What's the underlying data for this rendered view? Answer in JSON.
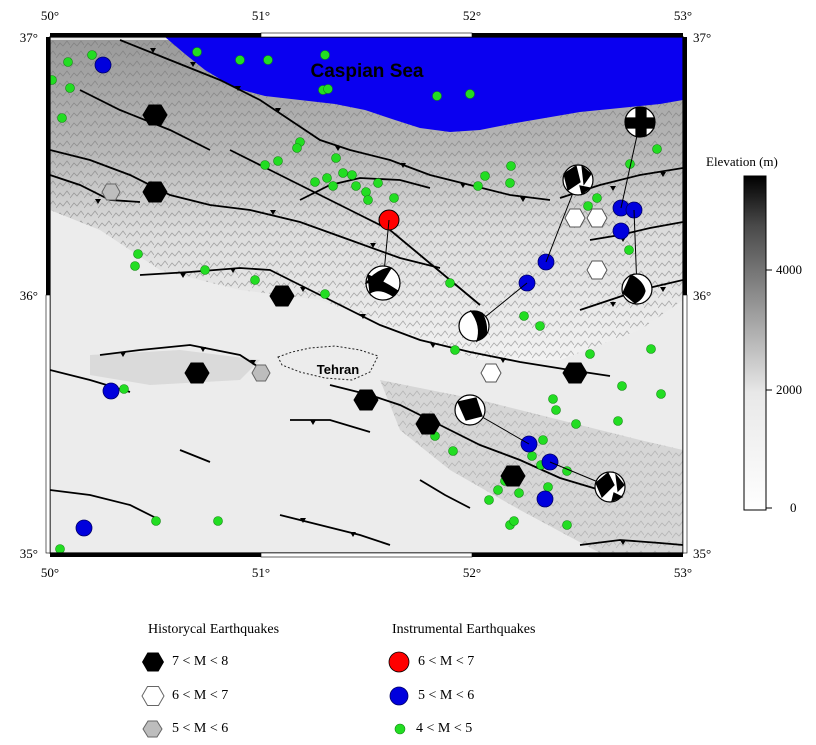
{
  "map": {
    "longitude_ticks": [
      "50°",
      "51°",
      "52°",
      "53°"
    ],
    "latitude_ticks": [
      "37°",
      "36°",
      "35°"
    ],
    "place_labels": {
      "sea": "Caspian Sea",
      "city": "Tehran"
    },
    "colors": {
      "sea": "#0a00f0",
      "terrain_base": "#e9e9e9",
      "historical_large": "#000000",
      "historical_medium": "#ffffff",
      "historical_small": "#bdbdbd",
      "instrumental_large": "#ff0000",
      "instrumental_medium": "#0000dd",
      "instrumental_small": "#22dd22"
    }
  },
  "colorbar": {
    "title": "Elevation (m)",
    "ticks": [
      "4000",
      "2000",
      "0"
    ],
    "range_m": [
      0,
      5500
    ]
  },
  "legend": {
    "historical": {
      "title": "Historycal Earthquakes",
      "items": [
        {
          "label": "7 < M < 8",
          "icon": "black-hexagon"
        },
        {
          "label": "6 < M < 7",
          "icon": "white-hexagon"
        },
        {
          "label": "5 < M < 6",
          "icon": "gray-hexagon"
        }
      ]
    },
    "instrumental": {
      "title": "Instrumental Earthquakes",
      "items": [
        {
          "label": "6 < M < 7",
          "icon": "red-circle"
        },
        {
          "label": "5 < M < 6",
          "icon": "blue-circle"
        },
        {
          "label": "4 < M < 5",
          "icon": "green-dot"
        }
      ]
    }
  }
}
